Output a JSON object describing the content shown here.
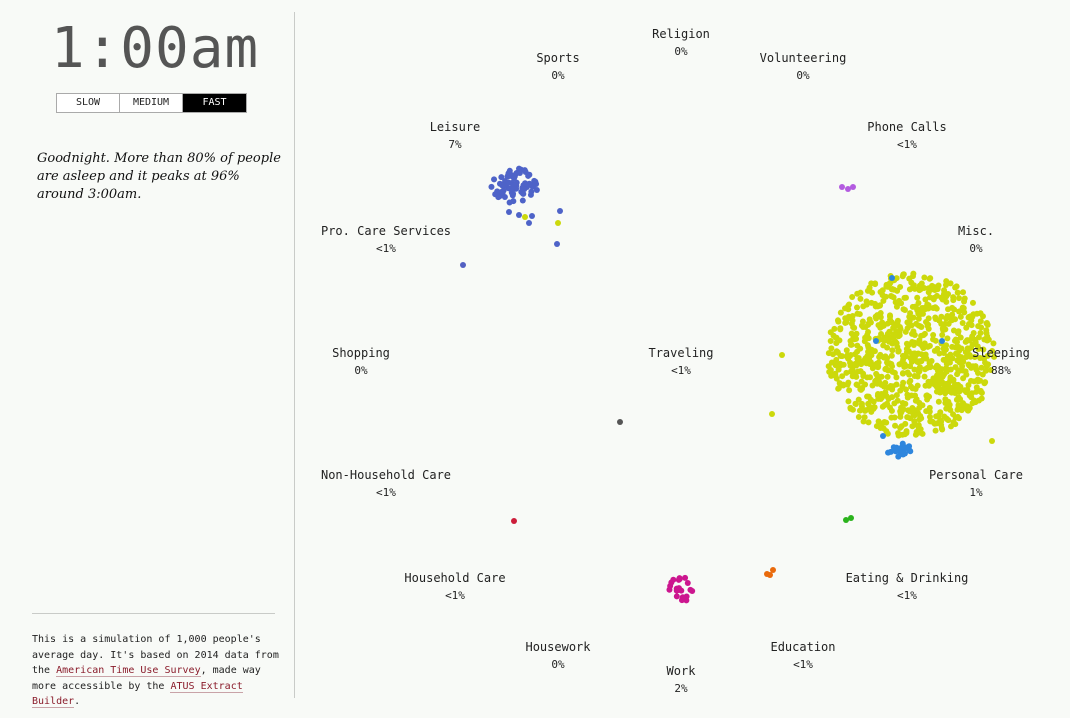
{
  "clock": {
    "time": "1:00am"
  },
  "speed": {
    "slow": "SLOW",
    "medium": "MEDIUM",
    "fast": "FAST",
    "active": "fast"
  },
  "narrative": "Goodnight. More than 80% of people are asleep and it peaks at 96% around 3:00am.",
  "credits": {
    "text_1": "This is a simulation of 1,000 people's average day. It's based on 2014 data from the ",
    "link_1": "American Time Use Survey",
    "text_2": ", made way more accessible by the ",
    "link_2": "ATUS Extract Builder",
    "text_3": "."
  },
  "colors": {
    "sleeping": "#ccd90b",
    "leisure": "#4e63c8",
    "personal_care": "#2e86dd",
    "work": "#cc168f",
    "eating": "#2ab31c",
    "education": "#e96a0c",
    "phone_calls": "#b35be0",
    "household_care": "#cc1d3a",
    "traveling": "#555555",
    "pro_care": "#5360c2"
  },
  "activities": [
    {
      "key": "religion",
      "name": "Religion",
      "pct": "0%"
    },
    {
      "key": "sports",
      "name": "Sports",
      "pct": "0%"
    },
    {
      "key": "volunteering",
      "name": "Volunteering",
      "pct": "0%"
    },
    {
      "key": "leisure",
      "name": "Leisure",
      "pct": "7%"
    },
    {
      "key": "phone_calls",
      "name": "Phone Calls",
      "pct": "<1%"
    },
    {
      "key": "pro_care",
      "name": "Pro. Care Services",
      "pct": "<1%"
    },
    {
      "key": "misc",
      "name": "Misc.",
      "pct": "0%"
    },
    {
      "key": "shopping",
      "name": "Shopping",
      "pct": "0%"
    },
    {
      "key": "traveling",
      "name": "Traveling",
      "pct": "<1%"
    },
    {
      "key": "sleeping",
      "name": "Sleeping",
      "pct": "88%"
    },
    {
      "key": "non_household_care",
      "name": "Non-Household Care",
      "pct": "<1%"
    },
    {
      "key": "personal_care",
      "name": "Personal Care",
      "pct": "1%"
    },
    {
      "key": "household_care",
      "name": "Household Care",
      "pct": "<1%"
    },
    {
      "key": "eating_drinking",
      "name": "Eating & Drinking",
      "pct": "<1%"
    },
    {
      "key": "housework",
      "name": "Housework",
      "pct": "0%"
    },
    {
      "key": "education",
      "name": "Education",
      "pct": "<1%"
    },
    {
      "key": "work",
      "name": "Work",
      "pct": "2%"
    }
  ]
}
